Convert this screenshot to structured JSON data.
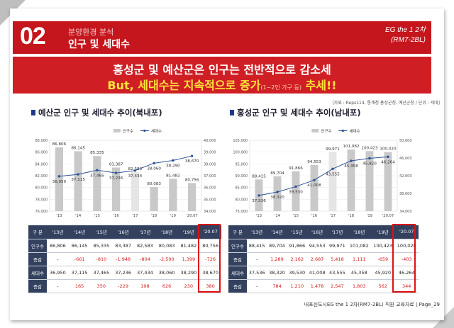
{
  "header": {
    "number": "02",
    "subtitle": "분양환경 분석",
    "title": "인구 및 세대수",
    "right_line1": "EG the 1 2차",
    "right_line2": "(RM7-2BL)"
  },
  "banner": {
    "line1": "홍성군 및 예산군은 인구는 전반적으로 감소세",
    "line2_a": "But, 세대수는 지속적으로 증가",
    "line2_small": "(1~2인 가구 등)",
    "line2_b": " 추세!!"
  },
  "source": "[자료 : Reps114, 통계청 홍성군청, 예산군청 / 단위 : 세대]",
  "footer": "내포신도시EG the 1 2차(RM7-2BL)  직원 교육자료 | Page_29",
  "legend": {
    "bar": "인구수",
    "line": "세대수"
  },
  "row_labels": [
    "구 분",
    "인구수",
    "증감",
    "세대수",
    "증감"
  ],
  "chart_data": [
    {
      "type": "bar",
      "title": "예산군 인구 및 세대수 추이(북내포)",
      "categories": [
        "'13",
        "'14",
        "'15",
        "'16",
        "'17",
        "'18",
        "'19",
        "'20.07"
      ],
      "left_ticks": [
        "88,000",
        "86,000",
        "84,000",
        "82,000",
        "80,000",
        "78,000",
        "76,000"
      ],
      "right_ticks": [
        "40,000",
        "39,000",
        "38,000",
        "37,000",
        "36,000",
        "35,000",
        "34,000"
      ],
      "ylim_left": [
        76000,
        88000
      ],
      "ylim_right": [
        34000,
        40000
      ],
      "series": [
        {
          "name": "인구수",
          "values": [
            86806,
            86145,
            85335,
            83387,
            82583,
            80083,
            81482,
            80756
          ],
          "labels": [
            "86,806",
            "86,145",
            "85,335",
            "83,387",
            "82,583",
            "80,083",
            "81,482",
            "80,756"
          ]
        },
        {
          "name": "세대수",
          "values": [
            36950,
            37115,
            37465,
            37236,
            37434,
            38060,
            38290,
            38670
          ],
          "labels": [
            "36,950",
            "37,115",
            "37,465",
            "37,236",
            "37,434",
            "38,060",
            "38,290",
            "38,670"
          ]
        }
      ]
    },
    {
      "type": "bar",
      "title": "홍성군 인구 및 세대수 추이(남내포)",
      "categories": [
        "'13",
        "'14",
        "'15",
        "'16",
        "'17",
        "'18",
        "'19",
        "'20.07"
      ],
      "left_ticks": [
        "105,000",
        "100,000",
        "95,000",
        "90,000",
        "85,000",
        "80,000",
        "75,000"
      ],
      "right_ticks": [
        "50,000",
        "46,000",
        "42,000",
        "38,000",
        "34,000"
      ],
      "ylim_left": [
        75000,
        105000
      ],
      "ylim_right": [
        34000,
        50000
      ],
      "series": [
        {
          "name": "인구수",
          "values": [
            88415,
            89704,
            91866,
            94553,
            99971,
            101082,
            100423,
            100020
          ],
          "labels": [
            "88,415",
            "89,704",
            "91,866",
            "94,553",
            "99,971",
            "101,082",
            "100,423",
            "100,020"
          ]
        },
        {
          "name": "세대수",
          "values": [
            37536,
            38320,
            39530,
            41008,
            43555,
            45358,
            45920,
            46264
          ],
          "labels": [
            "37,536",
            "38,320",
            "39,530",
            "41,008",
            "43,555",
            "45,358",
            "45,920",
            "46,264"
          ]
        }
      ]
    }
  ],
  "tables": [
    {
      "years": [
        "'13년",
        "'14년",
        "'15년",
        "'16년",
        "'17년",
        "'18년",
        "'19년",
        "'20.07"
      ],
      "rows": [
        [
          "86,806",
          "86,145",
          "85,335",
          "83,387",
          "82,583",
          "80,083",
          "81,482",
          "80,756"
        ],
        [
          "-",
          "-661",
          "-810",
          "-1,948",
          "-804",
          "-2,500",
          "1,399",
          "-726"
        ],
        [
          "36,950",
          "37,115",
          "37,465",
          "37,236",
          "37,434",
          "38,060",
          "38,290",
          "38,670"
        ],
        [
          "-",
          "165",
          "350",
          "-229",
          "198",
          "626",
          "230",
          "380"
        ]
      ]
    },
    {
      "years": [
        "'13년",
        "'14년",
        "'15년",
        "'16년",
        "'17년",
        "'18년",
        "'19년",
        "'20.07"
      ],
      "rows": [
        [
          "88,415",
          "89,704",
          "91,866",
          "94,553",
          "99,971",
          "101,082",
          "100,423",
          "100,020"
        ],
        [
          "-",
          "1,289",
          "2,162",
          "2,687",
          "5,418",
          "1,111",
          "-659",
          "-403"
        ],
        [
          "37,536",
          "38,320",
          "39,530",
          "41,008",
          "43,555",
          "45,358",
          "45,920",
          "46,264"
        ],
        [
          "-",
          "784",
          "1,210",
          "1,478",
          "2,547",
          "1,803",
          "562",
          "344"
        ]
      ]
    }
  ],
  "colors": {
    "header_red": "#c4161c",
    "banner_red": "#cf1f25",
    "banner_yellow": "#ffe33a",
    "bar_gray": "#c9c9c9",
    "bar_highlight": "#e5e5e5",
    "line_blue": "#2f5597",
    "table_head": "#33415f",
    "highlight_red": "#dd1111"
  }
}
